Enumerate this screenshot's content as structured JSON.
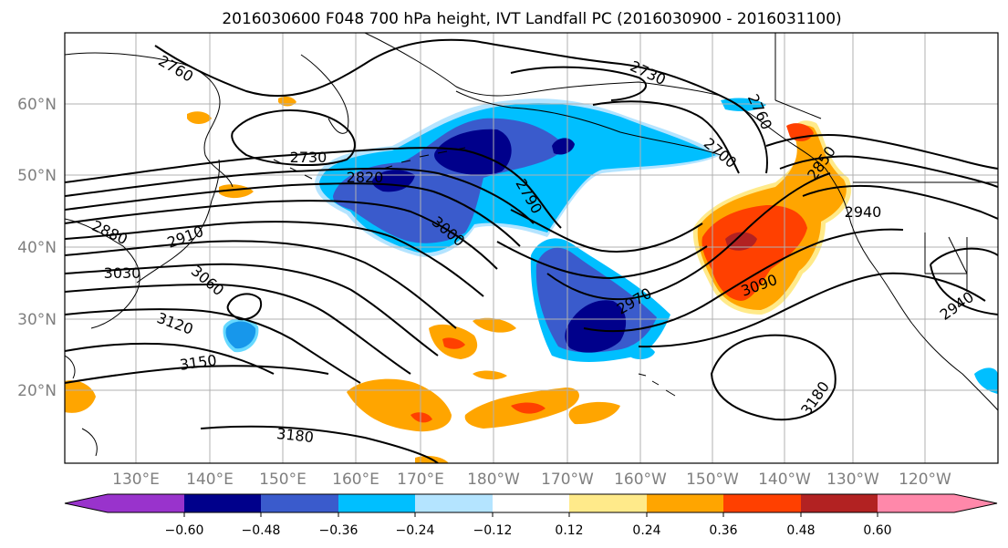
{
  "title": "2016030600 F048 700 hPa height, IVT Landfall PC (2016030900 - 2016031100)",
  "map": {
    "lon_labels": [
      "130°E",
      "140°E",
      "150°E",
      "160°E",
      "170°E",
      "180°W",
      "170°W",
      "160°W",
      "150°W",
      "140°W",
      "130°W",
      "120°W"
    ],
    "lat_labels": [
      "60°N",
      "50°N",
      "40°N",
      "30°N",
      "20°N"
    ],
    "contour_labels": [
      "2760",
      "2730",
      "2730",
      "2760",
      "2700",
      "2820",
      "2790",
      "2880",
      "2910",
      "3000",
      "2850",
      "2940",
      "3030",
      "3060",
      "2970",
      "3090",
      "3120",
      "2940",
      "3150",
      "3180",
      "3180"
    ],
    "colors": {
      "neg_darkest": "#9933cc",
      "neg_dark": "#00008b",
      "neg_mid": "#3a5bcc",
      "neg_light": "#00bfff",
      "neg_lightest": "#b4e4ff",
      "pos_lightest": "#ffea8a",
      "pos_light": "#ffa500",
      "pos_mid": "#ff4000",
      "pos_dark": "#b22222",
      "pos_darkest": "#ff88aa"
    }
  },
  "colorbar": {
    "tick_labels": [
      "−0.60",
      "−0.48",
      "−0.36",
      "−0.24",
      "−0.12",
      "0.12",
      "0.24",
      "0.36",
      "0.48",
      "0.60"
    ],
    "colors": [
      "#9933cc",
      "#00008b",
      "#3a5bcc",
      "#00bfff",
      "#b4e4ff",
      "#ffffff",
      "#ffea8a",
      "#ffa500",
      "#ff4000",
      "#b22222",
      "#ff88aa"
    ]
  }
}
